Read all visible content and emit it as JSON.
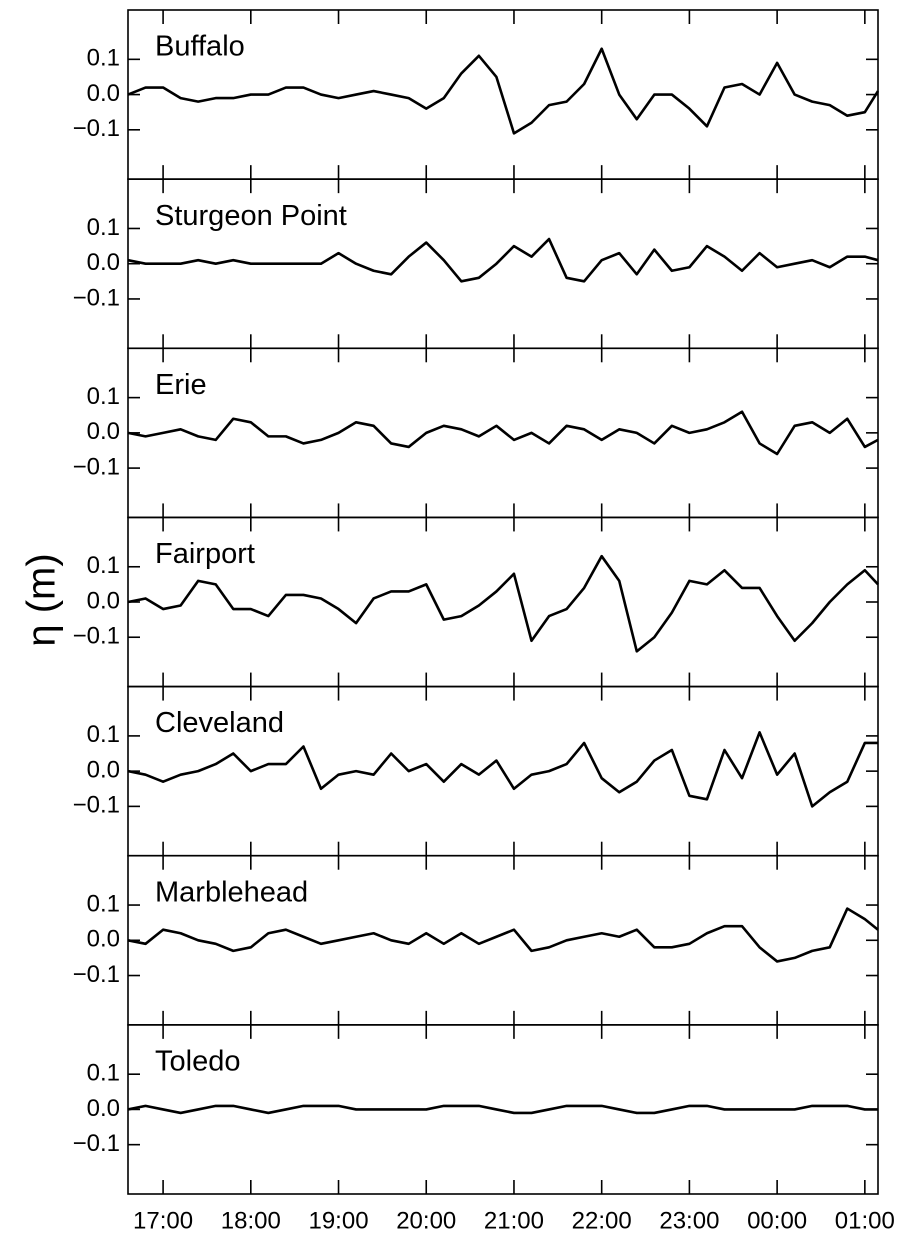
{
  "chart_data": {
    "type": "line",
    "ylabel": "η (m)",
    "color": "#000000",
    "x": [
      16.6,
      16.8,
      17.0,
      17.2,
      17.4,
      17.6,
      17.8,
      18.0,
      18.2,
      18.4,
      18.6,
      18.8,
      19.0,
      19.2,
      19.4,
      19.6,
      19.8,
      20.0,
      20.2,
      20.4,
      20.6,
      20.8,
      21.0,
      21.2,
      21.4,
      21.6,
      21.8,
      22.0,
      22.2,
      22.4,
      22.6,
      22.8,
      23.0,
      23.2,
      23.4,
      23.6,
      23.8,
      24.0,
      24.2,
      24.4,
      24.6,
      24.8,
      25.0,
      25.15
    ],
    "xlim": [
      16.6,
      25.15
    ],
    "xticks": [
      {
        "value": 17,
        "label": "17:00"
      },
      {
        "value": 18,
        "label": "18:00"
      },
      {
        "value": 19,
        "label": "19:00"
      },
      {
        "value": 20,
        "label": "20:00"
      },
      {
        "value": 21,
        "label": "21:00"
      },
      {
        "value": 22,
        "label": "22:00"
      },
      {
        "value": 23,
        "label": "23:00"
      },
      {
        "value": 24,
        "label": "00:00"
      },
      {
        "value": 25,
        "label": "01:00"
      }
    ],
    "ylim": [
      -0.24,
      0.24
    ],
    "yticks": [
      0.1,
      {
        "value": 0,
        "label": "0.0"
      },
      {
        "value": -0.1,
        "label": "−0.1"
      }
    ],
    "panels": [
      {
        "title": "Buffalo",
        "values": [
          0.0,
          0.02,
          0.02,
          -0.01,
          -0.02,
          -0.01,
          -0.01,
          0.0,
          0.0,
          0.02,
          0.02,
          0.0,
          -0.01,
          0.0,
          0.01,
          0.0,
          -0.01,
          -0.04,
          -0.01,
          0.06,
          0.11,
          0.05,
          -0.11,
          -0.08,
          -0.03,
          -0.02,
          0.03,
          0.13,
          0.0,
          -0.07,
          0.0,
          0.0,
          -0.04,
          -0.09,
          0.02,
          0.03,
          0.0,
          0.09,
          0.0,
          -0.02,
          -0.03,
          -0.06,
          -0.05,
          0.01
        ]
      },
      {
        "title": "Sturgeon Point",
        "values": [
          0.01,
          0.0,
          0.0,
          0.0,
          0.01,
          0.0,
          0.01,
          0.0,
          0.0,
          0.0,
          0.0,
          0.0,
          0.03,
          0.0,
          -0.02,
          -0.03,
          0.02,
          0.06,
          0.01,
          -0.05,
          -0.04,
          0.0,
          0.05,
          0.02,
          0.07,
          -0.04,
          -0.05,
          0.01,
          0.03,
          -0.03,
          0.04,
          -0.02,
          -0.01,
          0.05,
          0.02,
          -0.02,
          0.03,
          -0.01,
          0.0,
          0.01,
          -0.01,
          0.02,
          0.02,
          0.01
        ]
      },
      {
        "title": "Erie",
        "values": [
          0.0,
          -0.01,
          0.0,
          0.01,
          -0.01,
          -0.02,
          0.04,
          0.03,
          -0.01,
          -0.01,
          -0.03,
          -0.02,
          0.0,
          0.03,
          0.02,
          -0.03,
          -0.04,
          0.0,
          0.02,
          0.01,
          -0.01,
          0.02,
          -0.02,
          0.0,
          -0.03,
          0.02,
          0.01,
          -0.02,
          0.01,
          0.0,
          -0.03,
          0.02,
          0.0,
          0.01,
          0.03,
          0.06,
          -0.03,
          -0.06,
          0.02,
          0.03,
          0.0,
          0.04,
          -0.04,
          -0.02
        ]
      },
      {
        "title": "Fairport",
        "values": [
          0.0,
          0.01,
          -0.02,
          -0.01,
          0.06,
          0.05,
          -0.02,
          -0.02,
          -0.04,
          0.02,
          0.02,
          0.01,
          -0.02,
          -0.06,
          0.01,
          0.03,
          0.03,
          0.05,
          -0.05,
          -0.04,
          -0.01,
          0.03,
          0.08,
          -0.11,
          -0.04,
          -0.02,
          0.04,
          0.13,
          0.06,
          -0.14,
          -0.1,
          -0.03,
          0.06,
          0.05,
          0.09,
          0.04,
          0.04,
          -0.04,
          -0.11,
          -0.06,
          0.0,
          0.05,
          0.09,
          0.05
        ]
      },
      {
        "title": "Cleveland",
        "values": [
          0.0,
          -0.01,
          -0.03,
          -0.01,
          0.0,
          0.02,
          0.05,
          0.0,
          0.02,
          0.02,
          0.07,
          -0.05,
          -0.01,
          0.0,
          -0.01,
          0.05,
          0.0,
          0.02,
          -0.03,
          0.02,
          -0.01,
          0.03,
          -0.05,
          -0.01,
          0.0,
          0.02,
          0.08,
          -0.02,
          -0.06,
          -0.03,
          0.03,
          0.06,
          -0.07,
          -0.08,
          0.06,
          -0.02,
          0.11,
          -0.01,
          0.05,
          -0.1,
          -0.06,
          -0.03,
          0.08,
          0.08
        ]
      },
      {
        "title": "Marblehead",
        "values": [
          0.0,
          -0.01,
          0.03,
          0.02,
          0.0,
          -0.01,
          -0.03,
          -0.02,
          0.02,
          0.03,
          0.01,
          -0.01,
          0.0,
          0.01,
          0.02,
          0.0,
          -0.01,
          0.02,
          -0.01,
          0.02,
          -0.01,
          0.01,
          0.03,
          -0.03,
          -0.02,
          0.0,
          0.01,
          0.02,
          0.01,
          0.03,
          -0.02,
          -0.02,
          -0.01,
          0.02,
          0.04,
          0.04,
          -0.02,
          -0.06,
          -0.05,
          -0.03,
          -0.02,
          0.09,
          0.06,
          0.03
        ]
      },
      {
        "title": "Toledo",
        "values": [
          0.0,
          0.01,
          0.0,
          -0.01,
          0.0,
          0.01,
          0.01,
          0.0,
          -0.01,
          0.0,
          0.01,
          0.01,
          0.01,
          0.0,
          0.0,
          0.0,
          0.0,
          0.0,
          0.01,
          0.01,
          0.01,
          0.0,
          -0.01,
          -0.01,
          0.0,
          0.01,
          0.01,
          0.01,
          0.0,
          -0.01,
          -0.01,
          0.0,
          0.01,
          0.01,
          0.0,
          0.0,
          0.0,
          0.0,
          0.0,
          0.01,
          0.01,
          0.01,
          0.0,
          0.0
        ]
      }
    ]
  }
}
